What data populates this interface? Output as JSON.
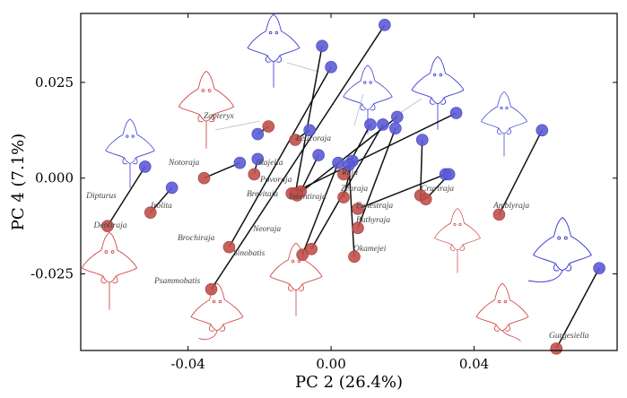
{
  "chart_data": {
    "type": "scatter",
    "xlabel": "PC 2 (26.4%)",
    "ylabel": "PC 4 (7.1%)",
    "xlim": [
      -0.07,
      0.08
    ],
    "ylim": [
      -0.045,
      0.043
    ],
    "xticks": [
      -0.04,
      0,
      0.04
    ],
    "xtick_labels": [
      "-0.04",
      "0.00",
      "0.04"
    ],
    "yticks": [
      -0.025,
      0.0,
      0.025
    ],
    "ytick_labels": [
      "-0.025",
      "0.000",
      "0.025"
    ],
    "grid": false,
    "colors": {
      "blue_point": "#5b5bd6",
      "red_point": "#c0504d",
      "blue_outline": "#3b3bd0",
      "red_outline": "#d14a4a"
    },
    "pairs": [
      {
        "label": "Dipturus",
        "blue": [
          -0.052,
          0.003
        ],
        "red": [
          -0.0625,
          -0.0125
        ]
      },
      {
        "label": "Irolita",
        "blue": [
          -0.0445,
          -0.0025
        ],
        "red": [
          -0.0505,
          -0.009
        ]
      },
      {
        "label": "Notoraja",
        "blue": [
          -0.0255,
          0.004
        ],
        "red": [
          -0.0355,
          0.0
        ]
      },
      {
        "label": "Zapteryx",
        "blue": [
          -0.0205,
          0.0115
        ],
        "red": [
          -0.0175,
          0.0135
        ]
      },
      {
        "label": "Rajella",
        "blue": [
          -0.0205,
          0.005
        ],
        "red": [
          -0.0215,
          0.001
        ]
      },
      {
        "label": "Leucoraja",
        "blue": [
          -0.006,
          0.0125
        ],
        "red": [
          -0.01,
          0.01
        ]
      },
      {
        "label": "Pavoraja",
        "blue": [
          -0.0035,
          0.006
        ],
        "red": [
          -0.0085,
          -0.0035
        ]
      },
      {
        "label": "Brevitaja",
        "blue": [
          -0.0025,
          0.0345
        ],
        "red": [
          -0.01,
          -0.004
        ]
      },
      {
        "label": "Insentiraja",
        "blue": [
          0.0185,
          0.016
        ],
        "red": [
          -0.0095,
          -0.0045
        ]
      },
      {
        "label": "Raja",
        "blue": [
          0.011,
          0.014
        ],
        "red": [
          0.0035,
          0.001
        ]
      },
      {
        "label": "Zearaja",
        "blue": [
          0.006,
          0.0045
        ],
        "red": [
          0.0035,
          -0.005
        ]
      },
      {
        "label": "Fenestraja",
        "blue": [
          0.032,
          0.001
        ],
        "red": [
          0.0075,
          -0.008
        ]
      },
      {
        "label": "Bathyraja",
        "blue": [
          0.018,
          0.013
        ],
        "red": [
          0.0075,
          -0.013
        ]
      },
      {
        "label": "Cruriraja",
        "blue": [
          0.0255,
          0.01
        ],
        "red": [
          0.025,
          -0.0045
        ]
      },
      {
        "label": "Amblyraja",
        "blue": [
          0.059,
          0.0125
        ],
        "red": [
          0.047,
          -0.0095
        ]
      },
      {
        "label": "Brochiraja",
        "blue": [
          0.0,
          0.029
        ],
        "red": [
          -0.0285,
          -0.018
        ]
      },
      {
        "label": "Neoraja",
        "blue": [
          0.0145,
          0.014
        ],
        "red": [
          -0.0055,
          -0.0185
        ]
      },
      {
        "label": "Sinobatis",
        "blue": [
          0.002,
          0.004
        ],
        "red": [
          -0.008,
          -0.02
        ]
      },
      {
        "label": "Okamejei",
        "blue": [
          0.005,
          0.0035
        ],
        "red": [
          0.0065,
          -0.0205
        ]
      },
      {
        "label": "Psammobatis",
        "blue": [
          0.015,
          0.04
        ],
        "red": [
          -0.0335,
          -0.029
        ]
      },
      {
        "label": "Gurgesiella",
        "blue": [
          0.075,
          -0.0235
        ],
        "red": [
          0.063,
          -0.0445
        ]
      },
      {
        "label": "",
        "blue": [
          0.035,
          0.017
        ],
        "red": [
          -0.011,
          -0.004
        ]
      },
      {
        "label": "",
        "blue": [
          0.033,
          0.001
        ],
        "red": [
          0.0265,
          -0.0055
        ]
      }
    ],
    "annotations": [
      "Dipturus",
      "Dentiraja",
      "Irolita",
      "Notoraja",
      "Zapteryx",
      "Rajella",
      "Leucoraja",
      "Pavoraja",
      "Brevitaja",
      "Insentiraja",
      "Raja",
      "Zearaja",
      "Fenestraja",
      "Bathyraja",
      "Cruriraja",
      "Amblyraja",
      "Brochiraja",
      "Neoraja",
      "Sinobatis",
      "Okamejei",
      "Psammobatis",
      "Gurgesiella"
    ]
  }
}
